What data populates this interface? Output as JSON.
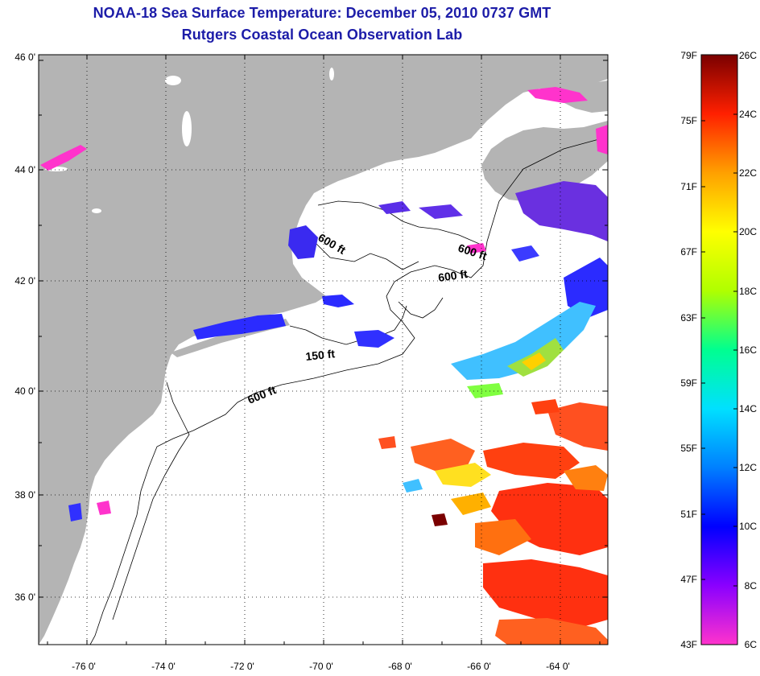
{
  "header": {
    "title": "NOAA-18 Sea Surface Temperature:  December 05, 2010 0737 GMT",
    "subtitle": "Rutgers Coastal Ocean Observation Lab"
  },
  "map": {
    "lat_labels": [
      "46 0'",
      "44 0'",
      "42 0'",
      "40 0'",
      "38 0'",
      "36 0'"
    ],
    "lon_labels": [
      "-76 0'",
      "-74 0'",
      "-72 0'",
      "-70 0'",
      "-68 0'",
      "-66 0'",
      "-64 0'"
    ],
    "contour_labels": [
      "600 ft",
      "600 ft",
      "600 ft",
      "150 ft",
      "600 ft"
    ],
    "colors": {
      "land": "#b4b4b4",
      "ocean": "#ffffff",
      "contour": "#000000"
    }
  },
  "colorbar": {
    "fahrenheit": [
      "79F",
      "75F",
      "71F",
      "67F",
      "63F",
      "59F",
      "55F",
      "51F",
      "47F",
      "43F"
    ],
    "celsius": [
      "26C",
      "24C",
      "22C",
      "20C",
      "18C",
      "16C",
      "14C",
      "12C",
      "10C",
      "8C",
      "6C"
    ],
    "gradient": [
      "#ff33cc",
      "#8a00ff",
      "#0000ff",
      "#0080ff",
      "#00e0ff",
      "#00ff90",
      "#b0ff00",
      "#ffff00",
      "#ffa000",
      "#ff2000",
      "#7a0000"
    ]
  }
}
